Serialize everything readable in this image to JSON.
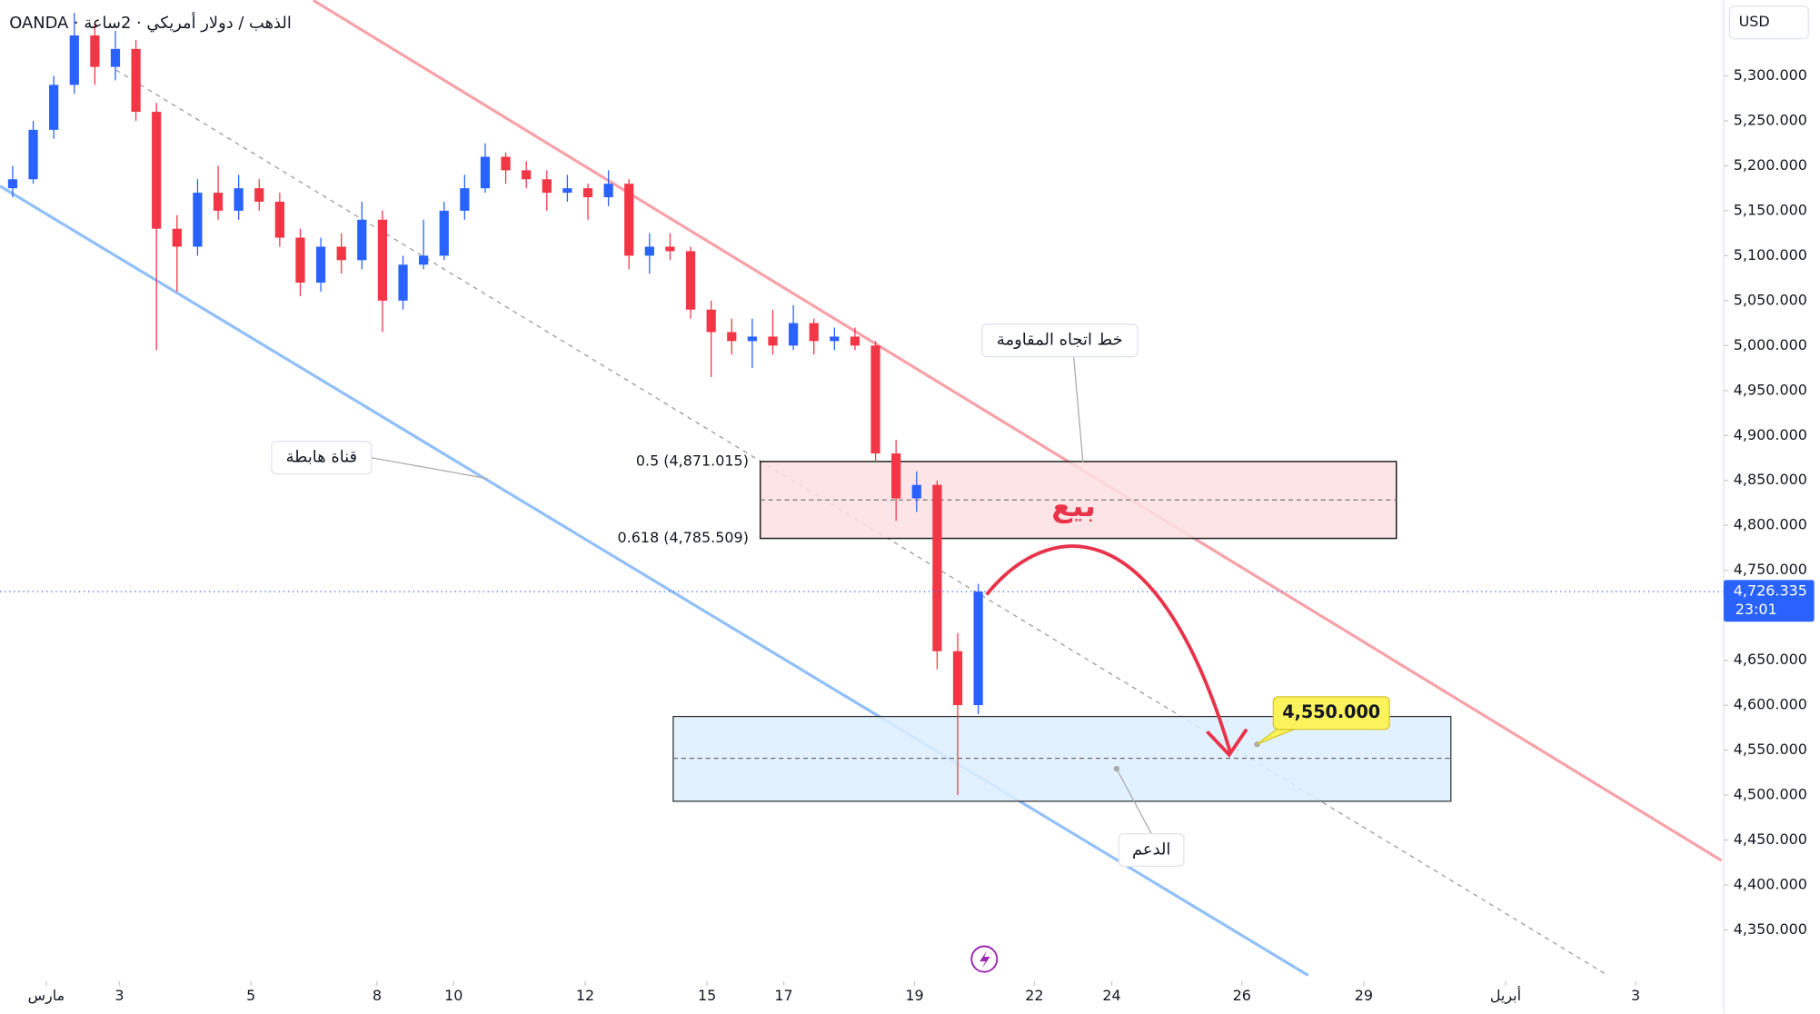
{
  "chart_data": {
    "type": "candlestick",
    "title": "OANDA · الذهب / دولار أمريكي · 2ساعة",
    "currency": "USD",
    "up_color": "#2962ff",
    "down_color": "#f23645",
    "x": [
      1,
      4,
      7,
      10,
      13,
      16,
      19,
      22,
      25,
      28,
      31,
      34,
      37,
      40,
      43,
      46,
      49,
      52,
      55,
      58,
      61,
      64,
      67,
      70,
      73,
      76,
      79,
      82,
      85,
      88,
      91,
      94,
      97,
      100,
      103,
      106,
      109,
      112,
      115,
      118,
      121,
      124,
      127,
      130,
      133,
      136,
      139,
      142
    ],
    "open": [
      5175,
      5185,
      5240,
      5290,
      5345,
      5310,
      5330,
      5260,
      5130,
      5110,
      5170,
      5150,
      5175,
      5160,
      5120,
      5070,
      5110,
      5095,
      5140,
      5050,
      5090,
      5100,
      5150,
      5175,
      5210,
      5195,
      5185,
      5170,
      5175,
      5165,
      5180,
      5100,
      5110,
      5105,
      5040,
      5015,
      5005,
      5010,
      5000,
      5025,
      5005,
      5010,
      5000,
      4880,
      4830,
      4845,
      4660,
      4600
    ],
    "high": [
      5200,
      5250,
      5300,
      5370,
      5360,
      5350,
      5340,
      5270,
      5145,
      5185,
      5200,
      5190,
      5185,
      5170,
      5130,
      5120,
      5125,
      5160,
      5150,
      5100,
      5140,
      5160,
      5190,
      5225,
      5215,
      5205,
      5195,
      5190,
      5180,
      5195,
      5185,
      5125,
      5125,
      5110,
      5050,
      5030,
      5030,
      5040,
      5045,
      5030,
      5020,
      5020,
      5005,
      4895,
      4860,
      4850,
      4680,
      4735
    ],
    "low": [
      5165,
      5180,
      5230,
      5280,
      5290,
      5295,
      5250,
      4995,
      5060,
      5100,
      5140,
      5140,
      5150,
      5110,
      5055,
      5060,
      5080,
      5085,
      5015,
      5040,
      5085,
      5095,
      5140,
      5170,
      5180,
      5175,
      5150,
      5160,
      5140,
      5155,
      5085,
      5080,
      5095,
      5030,
      4965,
      4990,
      4975,
      4990,
      4995,
      4990,
      4995,
      4995,
      4870,
      4805,
      4815,
      4640,
      4500,
      4590
    ],
    "close": [
      5185,
      5240,
      5290,
      5345,
      5310,
      5330,
      5260,
      5130,
      5110,
      5170,
      5150,
      5175,
      5160,
      5120,
      5070,
      5110,
      5095,
      5140,
      5050,
      5090,
      5100,
      5150,
      5175,
      5210,
      5195,
      5185,
      5170,
      5175,
      5165,
      5180,
      5100,
      5110,
      5105,
      5040,
      5015,
      5005,
      5010,
      5000,
      5025,
      5005,
      5010,
      5000,
      4880,
      4830,
      4845,
      4660,
      4600,
      4726.335
    ],
    "xlim": [
      -0.85,
      250.85
    ],
    "xticks": [
      {
        "value": 5.9,
        "label": "مارس"
      },
      {
        "value": 16.6,
        "label": "3"
      },
      {
        "value": 35.8,
        "label": "5"
      },
      {
        "value": 54.2,
        "label": "8"
      },
      {
        "value": 65.4,
        "label": "10"
      },
      {
        "value": 84.6,
        "label": "12"
      },
      {
        "value": 102.4,
        "label": "15"
      },
      {
        "value": 113.6,
        "label": "17"
      },
      {
        "value": 132.7,
        "label": "19"
      },
      {
        "value": 150.2,
        "label": "22"
      },
      {
        "value": 161.5,
        "label": "24"
      },
      {
        "value": 180.5,
        "label": "26"
      },
      {
        "value": 198.3,
        "label": "29"
      },
      {
        "value": 219,
        "label": "أبريل"
      },
      {
        "value": 238,
        "label": "3"
      }
    ],
    "ylim": [
      4293,
      5384
    ],
    "yticks": [
      {
        "value": 4350,
        "label": "4,350.000"
      },
      {
        "value": 4400,
        "label": "4,400.000"
      },
      {
        "value": 4450,
        "label": "4,450.000"
      },
      {
        "value": 4500,
        "label": "4,500.000"
      },
      {
        "value": 4550,
        "label": "4,550.000"
      },
      {
        "value": 4600,
        "label": "4,600.000"
      },
      {
        "value": 4650,
        "label": "4,650.000"
      },
      {
        "value": 4700,
        "label": "4,700.000"
      },
      {
        "value": 4750,
        "label": "4,750.000"
      },
      {
        "value": 4800,
        "label": "4,800.000"
      },
      {
        "value": 4850,
        "label": "4,850.000"
      },
      {
        "value": 4900,
        "label": "4,900.000"
      },
      {
        "value": 4950,
        "label": "4,950.000"
      },
      {
        "value": 5000,
        "label": "5,000.000"
      },
      {
        "value": 5050,
        "label": "5,050.000"
      },
      {
        "value": 5100,
        "label": "5,100.000"
      },
      {
        "value": 5150,
        "label": "5,150.000"
      },
      {
        "value": 5200,
        "label": "5,200.000"
      },
      {
        "value": 5250,
        "label": "5,250.000"
      },
      {
        "value": 5300,
        "label": "5,300.000"
      }
    ],
    "last_price": {
      "value": 4726.335,
      "label": "4,726.335"
    },
    "countdown": "23:01",
    "fib_levels": [
      {
        "value": 4871.015,
        "label": "0.5 (4,871.015)"
      },
      {
        "value": 4785.509,
        "label": "0.618 (4,785.509)"
      }
    ],
    "target": {
      "value": 4550,
      "label": "4,550.000"
    },
    "annotations": {
      "resistance": "خط اتجاه المقاومة",
      "channel": "قناة هابطة",
      "support": "الدعم",
      "sell": "بيع"
    }
  }
}
